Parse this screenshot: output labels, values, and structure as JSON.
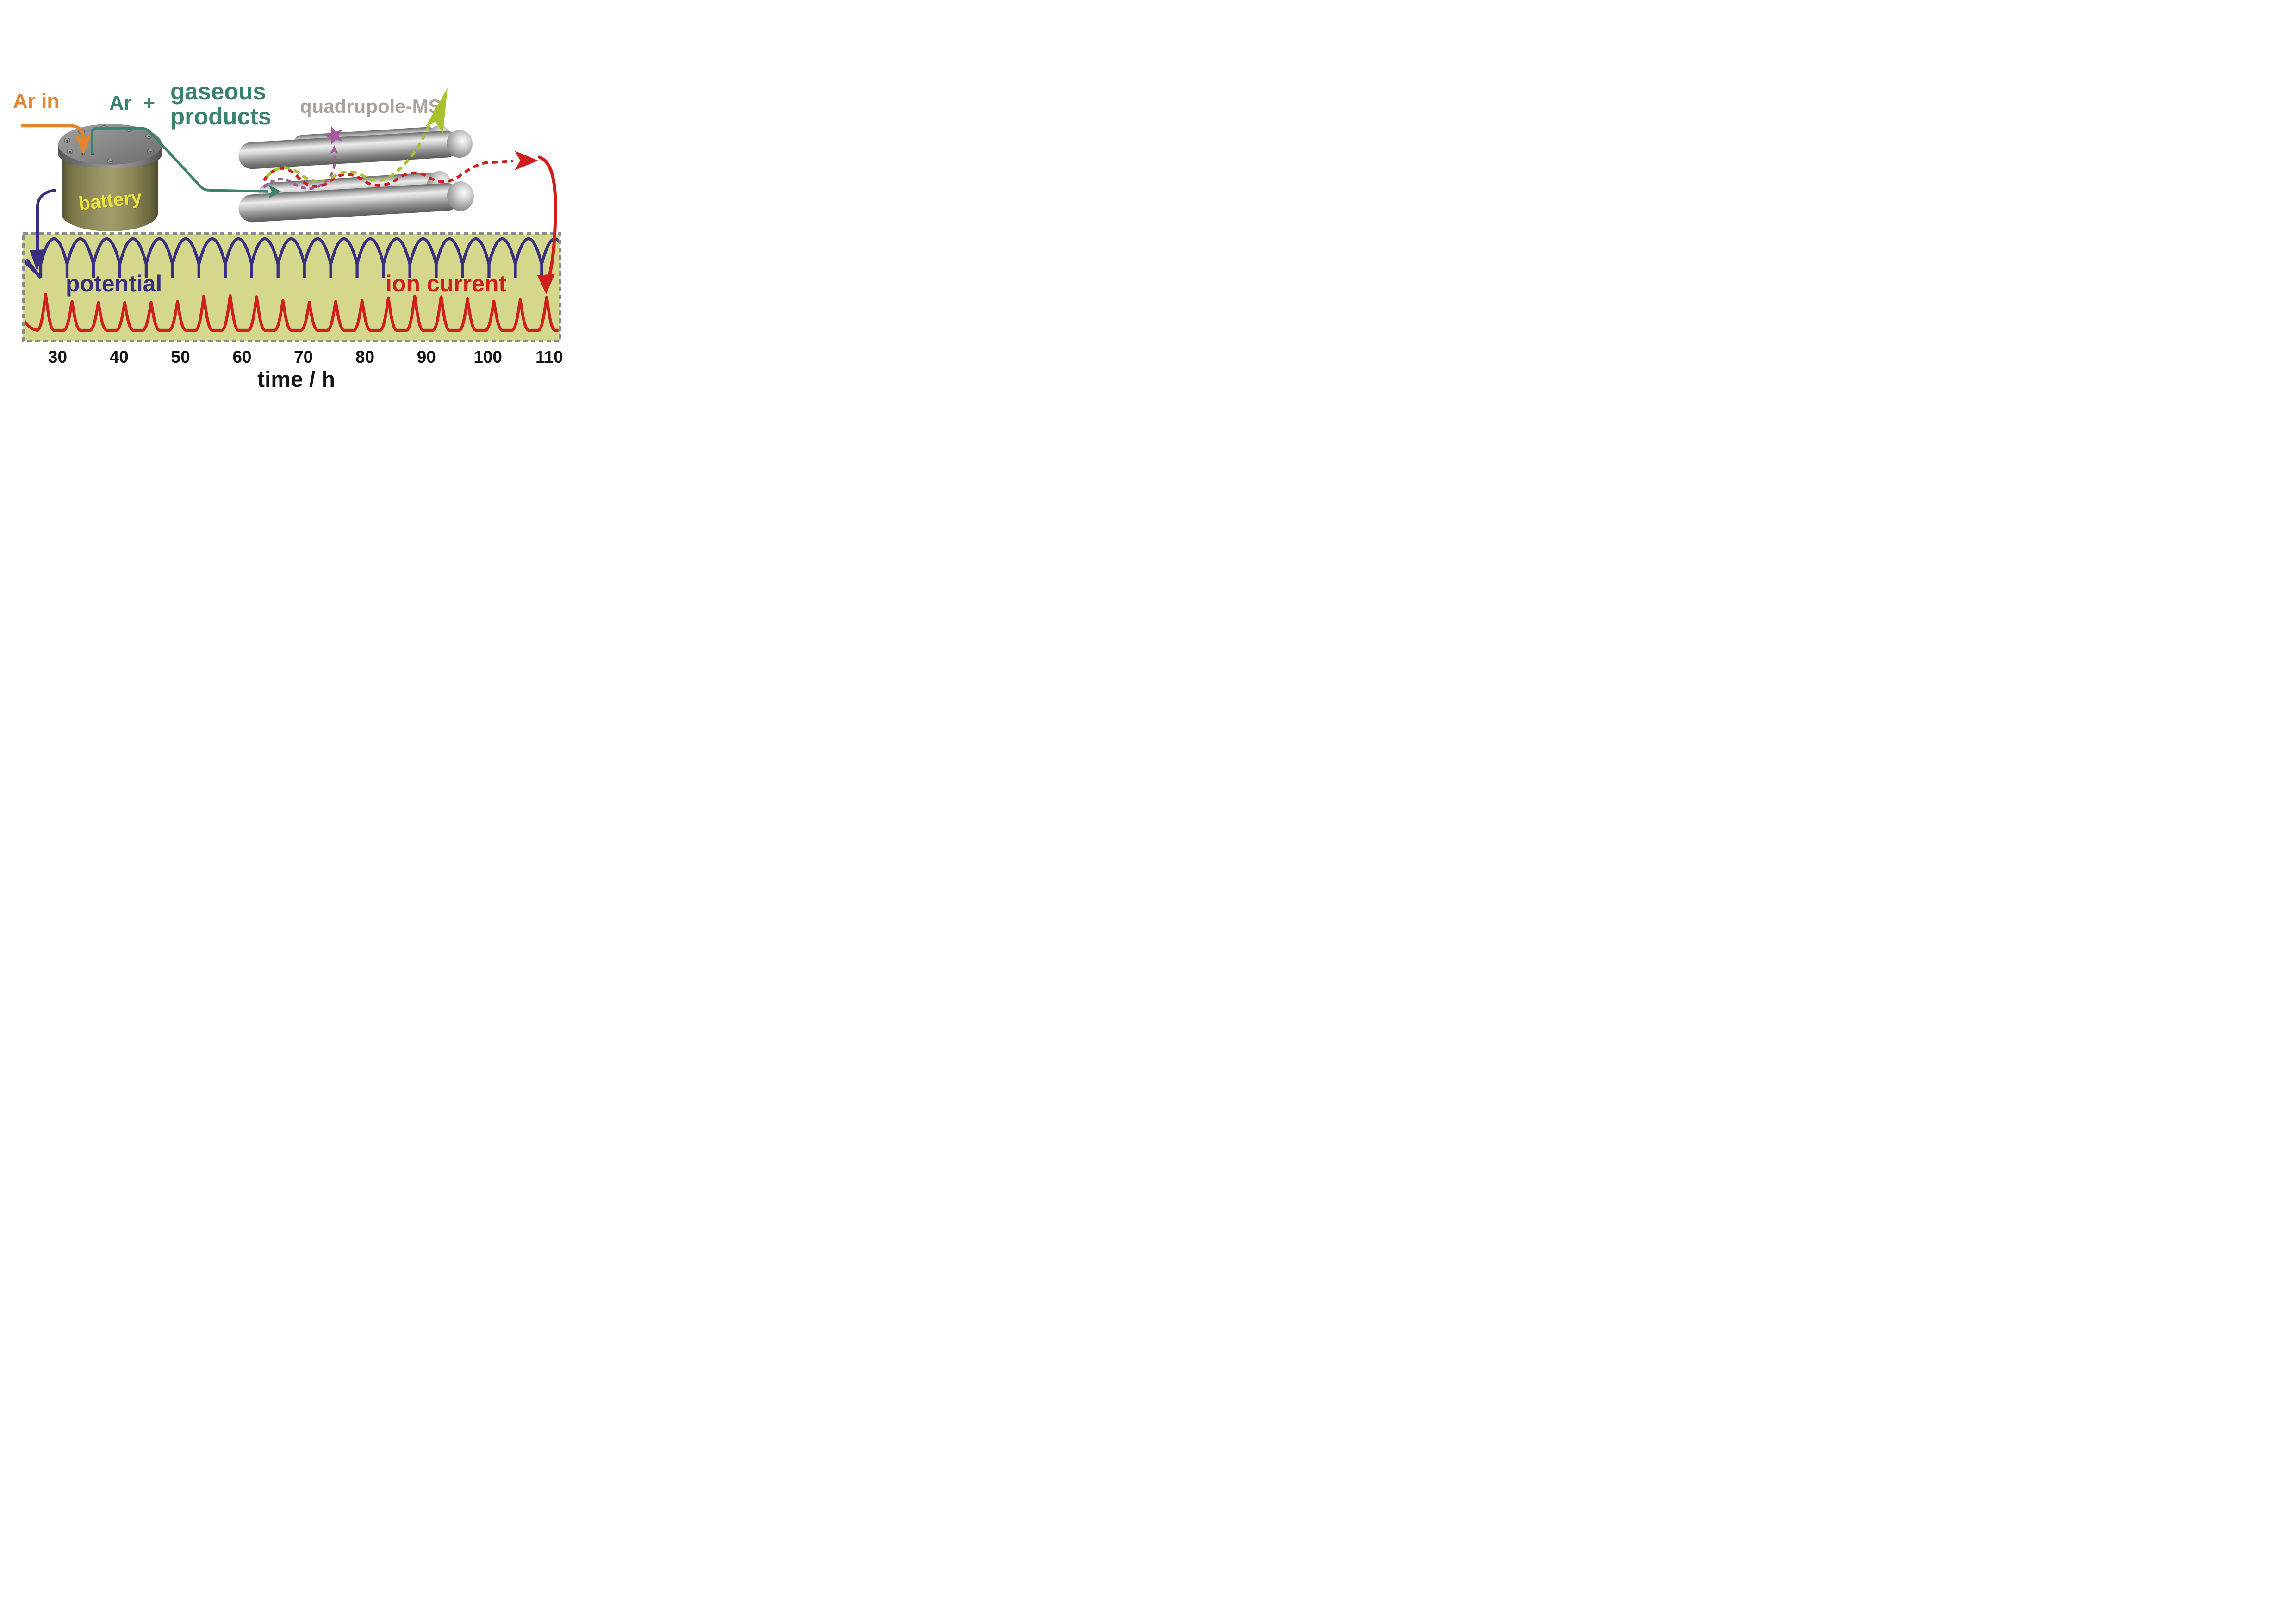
{
  "labels": {
    "ar_in": "Ar in",
    "ar_plus": "Ar  +",
    "gaseous_line1": "gaseous",
    "gaseous_line2": "products",
    "quadrupole": "quadrupole-MS",
    "battery": "battery",
    "potential": "potential",
    "ion_current": "ion current",
    "xlabel": "time / h"
  },
  "colors": {
    "orange": "#e0862c",
    "teal": "#3a8170",
    "gray_text": "#aba29c",
    "navy": "#38307e",
    "red": "#ce1e1e",
    "green": "#a6c32b",
    "purple": "#a4599d",
    "khaki": "#d5d88c",
    "border_gray": "#8b8b8b",
    "yellow": "#e8e43c",
    "black": "#141414"
  },
  "chart_data": {
    "type": "line",
    "title": "",
    "xlabel": "time / h",
    "ylabel": "",
    "x_ticks": [
      30,
      40,
      50,
      60,
      70,
      80,
      90,
      100,
      110
    ],
    "x_range_h": [
      24.3,
      111.5
    ],
    "grid": false,
    "legend_position": "labels inside plot area",
    "background": "#d5d88c",
    "series": [
      {
        "name": "potential",
        "color": "#38307e",
        "waveform": "battery cycling voltage: repeated rounded charge/discharge domes with a vertical drop stub at the end of every cycle",
        "period_h": 4.29,
        "first_cycle_start_h": 27.25,
        "n_cycles": 20
      },
      {
        "name": "ion current",
        "color": "#ce1e1e",
        "waveform": "flat baseline with one sharp gas-evolution peak per battery cycle",
        "period_h": 4.29,
        "first_peak_h": 28.05,
        "peak_heights_rel": [
          1.0,
          0.8,
          0.77,
          0.77,
          0.78,
          0.8,
          0.95,
          0.96,
          0.93,
          0.82,
          0.78,
          0.8,
          0.82,
          0.9,
          0.95,
          0.93,
          0.87,
          0.81,
          0.85,
          0.92
        ]
      }
    ]
  }
}
